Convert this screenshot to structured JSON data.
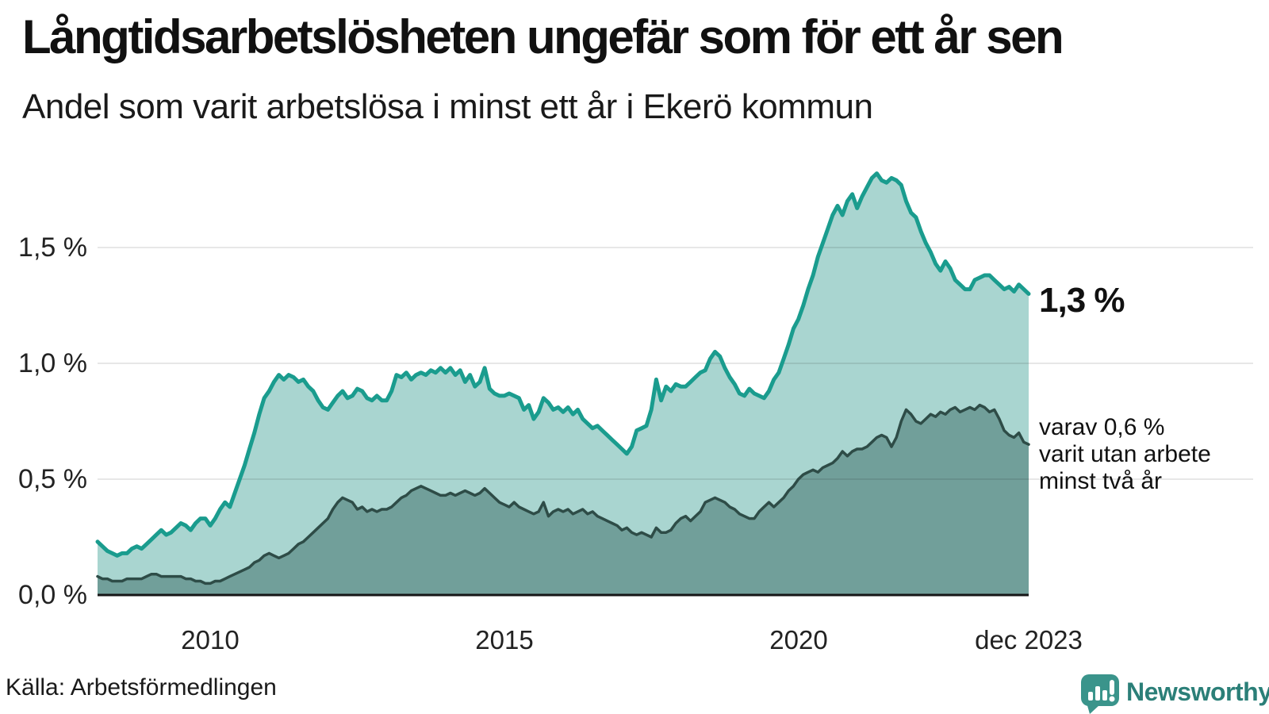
{
  "header": {
    "title": "Långtidsarbetslösheten ungefär som för ett år sen",
    "subtitle": "Andel som varit arbetslösa i minst ett år i Ekerö kommun"
  },
  "annotations": {
    "latest_total": "1,3 %",
    "secondary_lines": [
      "varav 0,6 %",
      "varit utan arbete",
      "minst två år"
    ]
  },
  "footer": {
    "source": "Källa: Arbetsförmedlingen",
    "brand": "Newsworthy",
    "logo_color": "#3a948b",
    "brand_text_color": "#2b7f78"
  },
  "chart_data": {
    "type": "area",
    "title": "Långtidsarbetslösheten ungefär som för ett år sen",
    "subtitle": "Andel som varit arbetslösa i minst ett år i Ekerö kommun",
    "unit": "percent",
    "frequency": "monthly",
    "x_start": "2008-02",
    "x_end": "2023-12",
    "ylim": [
      0,
      1.9
    ],
    "grid": "horizontal",
    "grid_color": "rgba(17,17,17,0.10)",
    "axis_color": "#161616",
    "y_ticks": [
      {
        "value": 0.0,
        "label": "0,0 %"
      },
      {
        "value": 0.5,
        "label": "0,5 %"
      },
      {
        "value": 1.0,
        "label": "1,0 %"
      },
      {
        "value": 1.5,
        "label": "1,5 %"
      }
    ],
    "x_ticks": [
      {
        "month_index": 23,
        "label": "2010"
      },
      {
        "month_index": 83,
        "label": "2015"
      },
      {
        "month_index": 143,
        "label": "2020"
      },
      {
        "month_index": 190,
        "label": "dec 2023"
      }
    ],
    "series": [
      {
        "name": "minst ett år",
        "end_label": "1,3 %",
        "latest_value": 1.3,
        "line_color": "#1a9c8e",
        "fill_color": "#a9d5d0",
        "line_width": 5,
        "values": [
          0.23,
          0.21,
          0.19,
          0.18,
          0.17,
          0.18,
          0.18,
          0.2,
          0.21,
          0.2,
          0.22,
          0.24,
          0.26,
          0.28,
          0.26,
          0.27,
          0.29,
          0.31,
          0.3,
          0.28,
          0.31,
          0.33,
          0.33,
          0.3,
          0.33,
          0.37,
          0.4,
          0.38,
          0.44,
          0.5,
          0.56,
          0.63,
          0.7,
          0.78,
          0.85,
          0.88,
          0.92,
          0.95,
          0.93,
          0.95,
          0.94,
          0.92,
          0.93,
          0.9,
          0.88,
          0.84,
          0.81,
          0.8,
          0.83,
          0.86,
          0.88,
          0.85,
          0.86,
          0.89,
          0.88,
          0.85,
          0.84,
          0.86,
          0.84,
          0.84,
          0.88,
          0.95,
          0.94,
          0.96,
          0.93,
          0.95,
          0.96,
          0.95,
          0.97,
          0.96,
          0.98,
          0.96,
          0.98,
          0.95,
          0.97,
          0.92,
          0.95,
          0.9,
          0.92,
          0.98,
          0.89,
          0.87,
          0.86,
          0.86,
          0.87,
          0.86,
          0.85,
          0.8,
          0.82,
          0.76,
          0.79,
          0.85,
          0.83,
          0.8,
          0.81,
          0.79,
          0.81,
          0.78,
          0.8,
          0.76,
          0.74,
          0.72,
          0.73,
          0.71,
          0.69,
          0.67,
          0.65,
          0.63,
          0.61,
          0.64,
          0.71,
          0.72,
          0.73,
          0.8,
          0.93,
          0.84,
          0.9,
          0.88,
          0.91,
          0.9,
          0.9,
          0.92,
          0.94,
          0.96,
          0.97,
          1.02,
          1.05,
          1.03,
          0.98,
          0.94,
          0.91,
          0.87,
          0.86,
          0.89,
          0.87,
          0.86,
          0.85,
          0.88,
          0.93,
          0.96,
          1.02,
          1.08,
          1.15,
          1.19,
          1.25,
          1.32,
          1.38,
          1.46,
          1.52,
          1.58,
          1.64,
          1.68,
          1.64,
          1.7,
          1.73,
          1.67,
          1.72,
          1.76,
          1.8,
          1.82,
          1.79,
          1.78,
          1.8,
          1.79,
          1.77,
          1.7,
          1.65,
          1.63,
          1.57,
          1.52,
          1.48,
          1.43,
          1.4,
          1.44,
          1.41,
          1.36,
          1.34,
          1.32,
          1.32,
          1.36,
          1.37,
          1.38,
          1.38,
          1.36,
          1.34,
          1.32,
          1.33,
          1.31,
          1.34,
          1.32,
          1.3
        ]
      },
      {
        "name": "varav minst två år",
        "end_label": "varav 0,6 % varit utan arbete minst två år",
        "latest_value": 0.6,
        "line_color": "#2e4c47",
        "fill_color": "#719f9a",
        "line_width": 3.5,
        "values": [
          0.08,
          0.07,
          0.07,
          0.06,
          0.06,
          0.06,
          0.07,
          0.07,
          0.07,
          0.07,
          0.08,
          0.09,
          0.09,
          0.08,
          0.08,
          0.08,
          0.08,
          0.08,
          0.07,
          0.07,
          0.06,
          0.06,
          0.05,
          0.05,
          0.06,
          0.06,
          0.07,
          0.08,
          0.09,
          0.1,
          0.11,
          0.12,
          0.14,
          0.15,
          0.17,
          0.18,
          0.17,
          0.16,
          0.17,
          0.18,
          0.2,
          0.22,
          0.23,
          0.25,
          0.27,
          0.29,
          0.31,
          0.33,
          0.37,
          0.4,
          0.42,
          0.41,
          0.4,
          0.37,
          0.38,
          0.36,
          0.37,
          0.36,
          0.37,
          0.37,
          0.38,
          0.4,
          0.42,
          0.43,
          0.45,
          0.46,
          0.47,
          0.46,
          0.45,
          0.44,
          0.43,
          0.43,
          0.44,
          0.43,
          0.44,
          0.45,
          0.44,
          0.43,
          0.44,
          0.46,
          0.44,
          0.42,
          0.4,
          0.39,
          0.38,
          0.4,
          0.38,
          0.37,
          0.36,
          0.35,
          0.36,
          0.4,
          0.34,
          0.36,
          0.37,
          0.36,
          0.37,
          0.35,
          0.36,
          0.37,
          0.35,
          0.36,
          0.34,
          0.33,
          0.32,
          0.31,
          0.3,
          0.28,
          0.29,
          0.27,
          0.26,
          0.27,
          0.26,
          0.25,
          0.29,
          0.27,
          0.27,
          0.28,
          0.31,
          0.33,
          0.34,
          0.32,
          0.34,
          0.36,
          0.4,
          0.41,
          0.42,
          0.41,
          0.4,
          0.38,
          0.37,
          0.35,
          0.34,
          0.33,
          0.33,
          0.36,
          0.38,
          0.4,
          0.38,
          0.4,
          0.42,
          0.45,
          0.47,
          0.5,
          0.52,
          0.53,
          0.54,
          0.53,
          0.55,
          0.56,
          0.57,
          0.59,
          0.62,
          0.6,
          0.62,
          0.63,
          0.63,
          0.64,
          0.66,
          0.68,
          0.69,
          0.68,
          0.64,
          0.68,
          0.75,
          0.8,
          0.78,
          0.75,
          0.74,
          0.76,
          0.78,
          0.77,
          0.79,
          0.78,
          0.8,
          0.81,
          0.79,
          0.8,
          0.81,
          0.8,
          0.82,
          0.81,
          0.79,
          0.8,
          0.76,
          0.71,
          0.69,
          0.68,
          0.7,
          0.66,
          0.65
        ]
      }
    ]
  }
}
